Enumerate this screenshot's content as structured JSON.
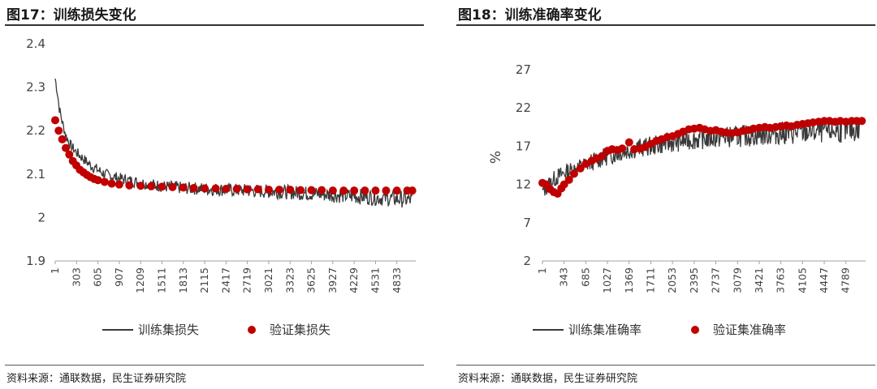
{
  "panels": [
    {
      "title": "图17：训练损失变化",
      "source": "资料来源：通联数据，民生证券研究院"
    },
    {
      "title": "图18：训练准确率变化",
      "source": "资料来源：通联数据，民生证券研究院"
    }
  ],
  "colors": {
    "train": "#3a3a3a",
    "valid": "#c00000",
    "axis": "#999999",
    "rule": "#333333"
  },
  "chart_data": [
    {
      "type": "line",
      "title": "",
      "ylim": [
        1.9,
        2.4
      ],
      "yticks": [
        "1.9",
        "2",
        "2.1",
        "2.2",
        "2.3",
        "2.4"
      ],
      "ytick_values": [
        1.9,
        2.0,
        2.1,
        2.2,
        2.3,
        2.4
      ],
      "xlim": [
        1,
        5100
      ],
      "xticks": [
        "1",
        "303",
        "605",
        "907",
        "1209",
        "1511",
        "1813",
        "2115",
        "2417",
        "2719",
        "3021",
        "3323",
        "3625",
        "3927",
        "4229",
        "4531",
        "4833"
      ],
      "series": [
        {
          "name": "训练集损失",
          "style": "line",
          "x": [
            1,
            30,
            60,
            100,
            150,
            200,
            300,
            400,
            500,
            600,
            700,
            800,
            907,
            1050,
            1209,
            1400,
            1511,
            1813,
            2115,
            2417,
            2719,
            3021,
            3323,
            3625,
            3927,
            4229,
            4531,
            4833,
            5050
          ],
          "y": [
            2.32,
            2.29,
            2.25,
            2.22,
            2.19,
            2.17,
            2.15,
            2.135,
            2.12,
            2.11,
            2.1,
            2.095,
            2.09,
            2.085,
            2.08,
            2.075,
            2.072,
            2.068,
            2.066,
            2.064,
            2.062,
            2.06,
            2.058,
            2.055,
            2.052,
            2.049,
            2.046,
            2.043,
            2.04
          ]
        },
        {
          "name": "验证集损失",
          "style": "markers",
          "x": [
            1,
            50,
            100,
            150,
            200,
            250,
            300,
            350,
            400,
            450,
            500,
            550,
            605,
            700,
            800,
            907,
            1050,
            1209,
            1360,
            1511,
            1660,
            1813,
            1960,
            2115,
            2270,
            2417,
            2570,
            2719,
            2870,
            3021,
            3170,
            3323,
            3470,
            3625,
            3770,
            3927,
            4080,
            4229,
            4380,
            4531,
            4680,
            4833,
            4980,
            5050
          ],
          "y": [
            2.224,
            2.2,
            2.18,
            2.16,
            2.145,
            2.13,
            2.12,
            2.11,
            2.104,
            2.098,
            2.093,
            2.089,
            2.086,
            2.082,
            2.078,
            2.076,
            2.074,
            2.073,
            2.072,
            2.071,
            2.07,
            2.069,
            2.068,
            2.067,
            2.067,
            2.066,
            2.066,
            2.065,
            2.065,
            2.064,
            2.064,
            2.064,
            2.063,
            2.063,
            2.063,
            2.062,
            2.062,
            2.062,
            2.062,
            2.062,
            2.062,
            2.062,
            2.062,
            2.062
          ]
        }
      ]
    },
    {
      "type": "line",
      "title": "",
      "ylabel": "%",
      "ylim": [
        2,
        27
      ],
      "yticks": [
        "2",
        "7",
        "12",
        "17",
        "22",
        "27"
      ],
      "ytick_values": [
        2,
        7,
        12,
        17,
        22,
        27
      ],
      "xlim": [
        1,
        5100
      ],
      "xticks": [
        "1",
        "343",
        "685",
        "1027",
        "1369",
        "1711",
        "2053",
        "2395",
        "2737",
        "3079",
        "3421",
        "3763",
        "4105",
        "4447",
        "4789"
      ],
      "series": [
        {
          "name": "训练集准确率",
          "style": "line",
          "x": [
            1,
            100,
            200,
            343,
            500,
            685,
            850,
            1027,
            1200,
            1369,
            1540,
            1711,
            1880,
            2053,
            2220,
            2395,
            2560,
            2737,
            2900,
            3079,
            3250,
            3421,
            3590,
            3763,
            3930,
            4105,
            4270,
            4447,
            4620,
            4789,
            5000
          ],
          "y": [
            11.0,
            12.0,
            12.8,
            13.5,
            14.0,
            14.6,
            15.2,
            15.7,
            16.1,
            16.5,
            16.8,
            17.0,
            17.3,
            17.5,
            17.7,
            17.9,
            18.0,
            18.1,
            18.2,
            18.3,
            18.4,
            18.5,
            18.6,
            18.7,
            18.7,
            18.8,
            18.9,
            19.0,
            19.0,
            19.1,
            19.2
          ]
        },
        {
          "name": "验证集准确率",
          "style": "markers",
          "x": [
            1,
            60,
            120,
            180,
            240,
            300,
            343,
            420,
            500,
            600,
            685,
            780,
            860,
            940,
            1027,
            1100,
            1180,
            1260,
            1369,
            1450,
            1540,
            1620,
            1711,
            1800,
            1880,
            1970,
            2053,
            2140,
            2220,
            2310,
            2395,
            2480,
            2560,
            2650,
            2737,
            2820,
            2900,
            2990,
            3079,
            3160,
            3250,
            3330,
            3421,
            3510,
            3590,
            3680,
            3763,
            3850,
            3930,
            4020,
            4105,
            4190,
            4270,
            4360,
            4447,
            4530,
            4620,
            4700,
            4789,
            4880,
            4960,
            5040
          ],
          "y": [
            12.2,
            12.0,
            11.4,
            11.0,
            10.8,
            11.5,
            12.0,
            12.6,
            13.4,
            14.1,
            14.7,
            15.1,
            15.4,
            15.7,
            16.4,
            16.6,
            16.5,
            16.7,
            17.5,
            16.6,
            16.7,
            16.9,
            17.3,
            17.7,
            17.9,
            18.2,
            18.3,
            18.6,
            18.9,
            19.2,
            19.3,
            19.4,
            19.2,
            19.0,
            19.1,
            18.9,
            18.8,
            18.7,
            18.8,
            19.0,
            19.1,
            19.3,
            19.4,
            19.5,
            19.4,
            19.5,
            19.6,
            19.7,
            19.6,
            19.8,
            19.9,
            20.0,
            20.1,
            20.2,
            20.3,
            20.3,
            20.2,
            20.3,
            20.2,
            20.3,
            20.3,
            20.3
          ]
        }
      ]
    }
  ]
}
